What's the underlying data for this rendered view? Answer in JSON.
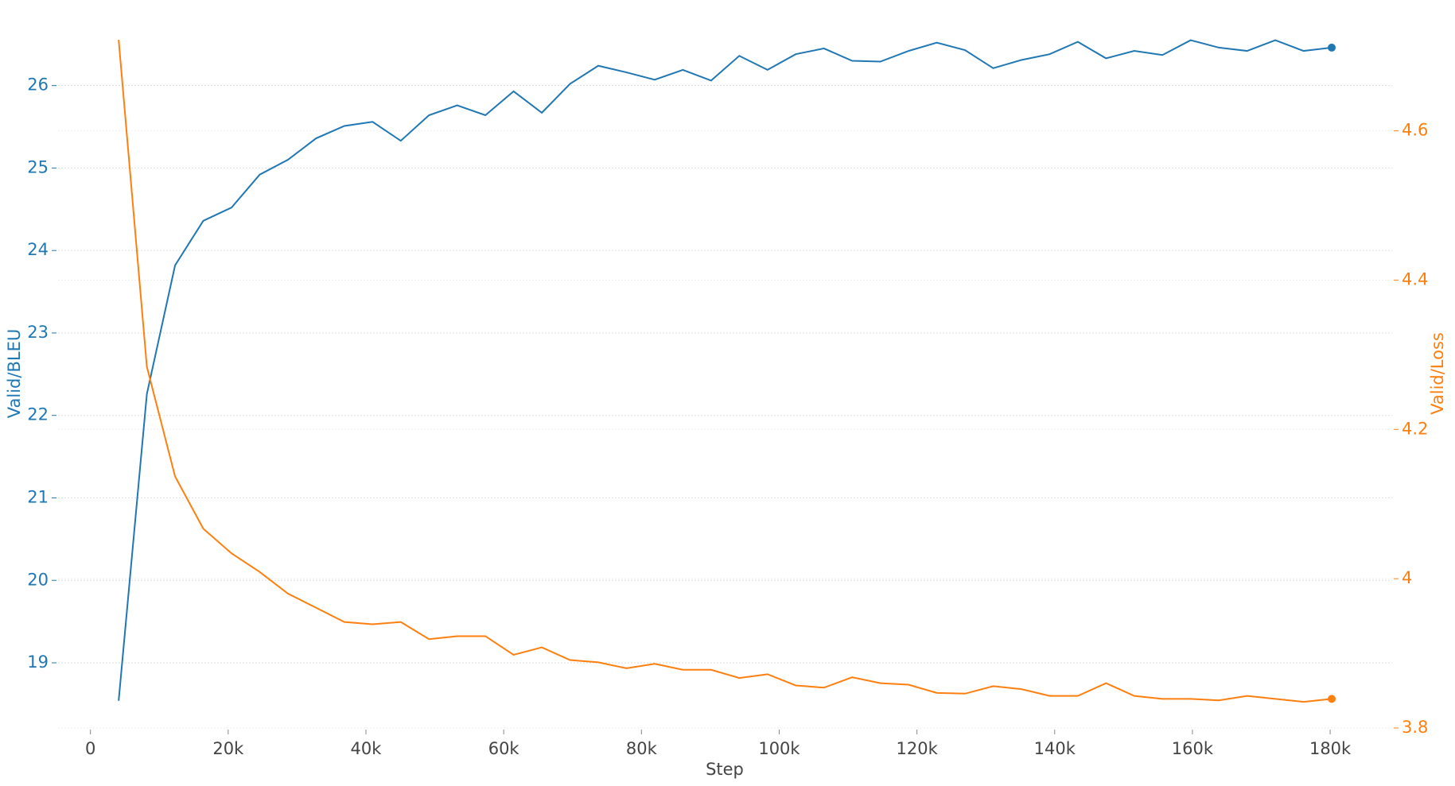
{
  "chart_data": {
    "type": "line",
    "xlabel": "Step",
    "ylabel": "Valid/BLEU",
    "y2label": "Valid/Loss",
    "x": [
      4096,
      8192,
      12288,
      16384,
      20480,
      24576,
      28672,
      32768,
      36864,
      40960,
      45056,
      49152,
      53248,
      57344,
      61440,
      65536,
      69632,
      73728,
      77824,
      81920,
      86016,
      90112,
      94208,
      98304,
      102400,
      106496,
      110592,
      114688,
      118784,
      122880,
      126976,
      131072,
      135168,
      139264,
      143360,
      147456,
      151552,
      155648,
      159744,
      163840,
      167936,
      172032,
      176128,
      180224
    ],
    "series": [
      {
        "name": "Valid/BLEU",
        "color": "#1f77b4",
        "axis": "y",
        "values": [
          18.54,
          22.26,
          23.82,
          24.36,
          24.52,
          24.92,
          25.1,
          25.36,
          25.51,
          25.56,
          25.33,
          25.64,
          25.76,
          25.64,
          25.93,
          25.67,
          26.02,
          26.24,
          26.16,
          26.07,
          26.19,
          26.06,
          26.36,
          26.19,
          26.38,
          26.45,
          26.3,
          26.29,
          26.42,
          26.52,
          26.43,
          26.21,
          26.31,
          26.38,
          26.53,
          26.33,
          26.42,
          26.37,
          26.55,
          26.46,
          26.42,
          26.55,
          26.42,
          26.46
        ]
      },
      {
        "name": "Valid/Loss",
        "color": "#ff7f0e",
        "axis": "y2",
        "values": [
          4.722,
          4.284,
          4.137,
          4.067,
          4.034,
          4.009,
          3.98,
          3.961,
          3.942,
          3.939,
          3.942,
          3.919,
          3.923,
          3.923,
          3.898,
          3.908,
          3.891,
          3.888,
          3.88,
          3.886,
          3.878,
          3.878,
          3.867,
          3.872,
          3.857,
          3.854,
          3.868,
          3.86,
          3.858,
          3.847,
          3.846,
          3.856,
          3.852,
          3.843,
          3.843,
          3.86,
          3.843,
          3.839,
          3.839,
          3.837,
          3.843,
          3.839,
          3.835,
          3.839
        ]
      }
    ],
    "xlim": [
      -4700,
      189000
    ],
    "xticks": [
      0,
      {
        "value": 20000,
        "label": "20k"
      },
      {
        "value": 40000,
        "label": "40k"
      },
      {
        "value": 60000,
        "label": "60k"
      },
      {
        "value": 80000,
        "label": "80k"
      },
      {
        "value": 100000,
        "label": "100k"
      },
      {
        "value": 120000,
        "label": "120k"
      },
      {
        "value": 140000,
        "label": "140k"
      },
      {
        "value": 160000,
        "label": "160k"
      },
      {
        "value": 180000,
        "label": "180k"
      }
    ],
    "ylim": [
      18.21,
      26.7
    ],
    "yticks": [
      19,
      20,
      21,
      22,
      23,
      24,
      25,
      26
    ],
    "y2lim": [
      3.8,
      4.738
    ],
    "y2ticks": [
      3.8,
      4.0,
      4.2,
      4.4,
      4.6
    ],
    "grid": true
  }
}
